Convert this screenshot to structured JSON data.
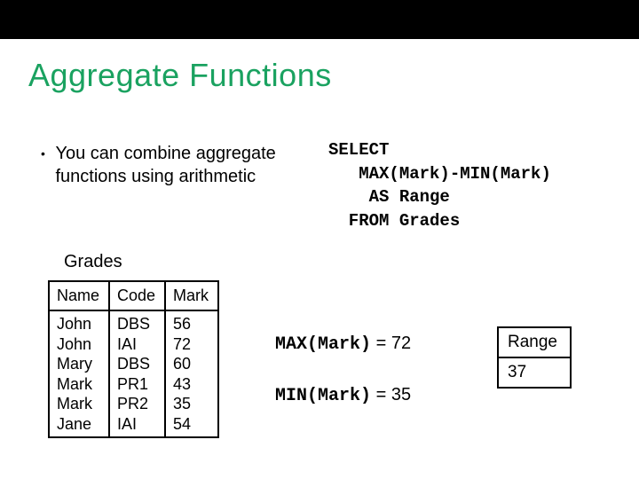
{
  "colors": {
    "title": "#1aa260",
    "topbar": "#000000",
    "background": "#ffffff",
    "text": "#000000",
    "table_border": "#000000"
  },
  "typography": {
    "title_fontsize": 36,
    "body_fontsize": 20,
    "table_fontsize": 18,
    "mono_family": "Courier New"
  },
  "title": "Aggregate Functions",
  "bullet": "You can combine aggregate functions using arithmetic",
  "sql": {
    "line1": "SELECT",
    "line2": "   MAX(Mark)-MIN(Mark)",
    "line3": "    AS Range",
    "line4": "  FROM Grades"
  },
  "grades": {
    "label": "Grades",
    "columns": [
      "Name",
      "Code",
      "Mark"
    ],
    "rows": [
      [
        "John",
        "DBS",
        "56"
      ],
      [
        "John",
        "IAI",
        "72"
      ],
      [
        "Mary",
        "DBS",
        "60"
      ],
      [
        "Mark",
        "PR1",
        "43"
      ],
      [
        "Mark",
        "PR2",
        "35"
      ],
      [
        "Jane",
        "IAI",
        "54"
      ]
    ]
  },
  "calc": {
    "max_expr": "MAX(Mark)",
    "max_eq": " = 72",
    "min_expr": "MIN(Mark)",
    "min_eq": " = 35"
  },
  "range": {
    "header": "Range",
    "value": "37"
  }
}
